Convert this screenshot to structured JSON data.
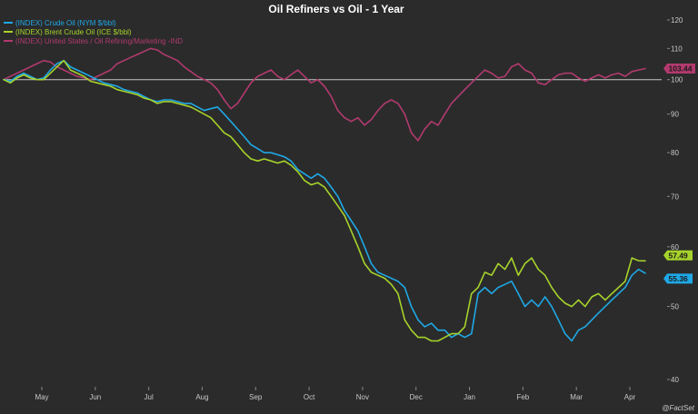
{
  "chart_data": {
    "type": "line",
    "title": "Oil Refiners vs Oil - 1 Year",
    "scale": "log",
    "ylim": [
      40,
      120
    ],
    "yticks": [
      40,
      50,
      60,
      70,
      80,
      90,
      100,
      110,
      120
    ],
    "reference_line": 100,
    "xlabels": [
      "May",
      "Jun",
      "Jul",
      "Aug",
      "Sep",
      "Oct",
      "Nov",
      "Dec",
      "Jan",
      "Feb",
      "Mar",
      "Apr"
    ],
    "grid": false,
    "legend_position": "top-left",
    "series": [
      {
        "name": "(INDEX) Crude Oil (NYM $/bbl)",
        "color": "#1fa8e6",
        "end_label": "55.36",
        "values": [
          100,
          99.5,
          101,
          102,
          101,
          100,
          100.5,
          103,
          105,
          106,
          104,
          103,
          102,
          101,
          100,
          99,
          98.5,
          98,
          97,
          96.5,
          96,
          95,
          94,
          93.5,
          94,
          94,
          93.5,
          93,
          93,
          92,
          91,
          91.5,
          92,
          90,
          88,
          86,
          84,
          82,
          81,
          80,
          80,
          79.5,
          79,
          78,
          76,
          75,
          74,
          75,
          74,
          72,
          70,
          67,
          65,
          63,
          60,
          57,
          55.5,
          55,
          54.5,
          54,
          53,
          50,
          48,
          47,
          47.5,
          46.5,
          46.5,
          45.5,
          46,
          45.5,
          46,
          52,
          53,
          52,
          53,
          53.5,
          54,
          52,
          50,
          51,
          50,
          51.5,
          50,
          48,
          46,
          45,
          46.5,
          47,
          48,
          49,
          50,
          51,
          52,
          53,
          55,
          56,
          55.36
        ]
      },
      {
        "name": "(INDEX) Brent Crude Oil (ICE $/bbl)",
        "color": "#a6d32b",
        "end_label": "57.49",
        "values": [
          100,
          99,
          100.5,
          101.5,
          100.5,
          100,
          100,
          102,
          104,
          106,
          103,
          102,
          101,
          99.5,
          99,
          98.5,
          98,
          97,
          96.5,
          96,
          95.5,
          94.5,
          94,
          93,
          93.5,
          93.5,
          93,
          92.5,
          92,
          91,
          90,
          89,
          87,
          85,
          84,
          82,
          80,
          78.5,
          78,
          78.5,
          78,
          77.5,
          78,
          77,
          75.5,
          73.5,
          72.5,
          73,
          72,
          70,
          68,
          66,
          63,
          60,
          57,
          55.5,
          55,
          54.5,
          53.5,
          52,
          48,
          46.5,
          45.5,
          45.5,
          45,
          45,
          45.5,
          46,
          46,
          47,
          52,
          53,
          55.5,
          55,
          57,
          56,
          58,
          55,
          57,
          58,
          56,
          55,
          53,
          51.5,
          50.5,
          50,
          51,
          50,
          51.5,
          52,
          51,
          52,
          53,
          54,
          58,
          57.5,
          57.49
        ]
      },
      {
        "name": "(INDEX) United States / Oil Refining/Marketing -IND",
        "color": "#b23a6e",
        "end_label": "103.44",
        "values": [
          100,
          101,
          102,
          103,
          104,
          105,
          106,
          105.5,
          104,
          103,
          102,
          101,
          100.5,
          100,
          101,
          102,
          103,
          105,
          106,
          107,
          108,
          109,
          110,
          109.5,
          108,
          107,
          106,
          104,
          102.5,
          101,
          100,
          99,
          97,
          94,
          91.5,
          93,
          96,
          99,
          101,
          102,
          103,
          101,
          100,
          101.5,
          103,
          101,
          99,
          100,
          98,
          95,
          91,
          89,
          88,
          89,
          87,
          88.5,
          91,
          93,
          94,
          93,
          90,
          85,
          83,
          86,
          88,
          87,
          90,
          93,
          95,
          97,
          99,
          101,
          103,
          102,
          100.5,
          101,
          104,
          105,
          103,
          102,
          99,
          98.5,
          100,
          101.5,
          102,
          102,
          100.5,
          99.5,
          100.5,
          101.5,
          100.5,
          101.5,
          102,
          101,
          102.5,
          103,
          103.44
        ]
      }
    ]
  },
  "brand": "@FactSet"
}
